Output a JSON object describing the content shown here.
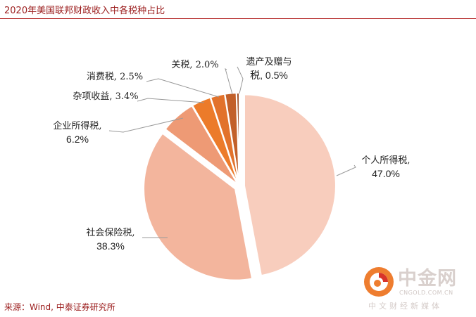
{
  "title": "2020年美国联邦财政收入中各税种占比",
  "source": "来源：Wind, 中泰证券研究所",
  "watermark": {
    "name": "中金网",
    "domain": "CNGOLD.COM.CN",
    "tagline": "中文财经新媒体"
  },
  "chart_data": {
    "type": "pie",
    "title": "2020年美国联邦财政收入中各税种占比",
    "unit": "%",
    "slices": [
      {
        "name": "个人所得税",
        "value": 47.0,
        "label": "47.0%",
        "color": "#f8cdbd"
      },
      {
        "name": "社会保险税",
        "value": 38.3,
        "label": "38.3%",
        "color": "#f3b59d"
      },
      {
        "name": "企业所得税",
        "value": 6.2,
        "label": "6.2%",
        "color": "#ee9a75"
      },
      {
        "name": "杂项收益",
        "value": 3.4,
        "label": "3.4%",
        "color": "#ec7b2a"
      },
      {
        "name": "消费税",
        "value": 2.5,
        "label": "2.5%",
        "color": "#e2722b"
      },
      {
        "name": "关税",
        "value": 2.0,
        "label": "2.0%",
        "color": "#c2602a"
      },
      {
        "name": "遗产及赠与税",
        "value": 0.5,
        "label": "0.5%",
        "color": "#a04d24"
      }
    ],
    "labels_display": [
      {
        "line1": "个人所得税,",
        "line2": "47.0%"
      },
      {
        "line1": "社会保险税,",
        "line2": "38.3%"
      },
      {
        "line1": "企业所得税,",
        "line2": "6.2%"
      },
      {
        "line1": "杂项收益, 3.4%",
        "line2": ""
      },
      {
        "line1": "消费税, 2.5%",
        "line2": ""
      },
      {
        "line1": "关税, 2.0%",
        "line2": ""
      },
      {
        "line1": "遗产及赠与",
        "line2": "税, 0.5%"
      }
    ]
  }
}
